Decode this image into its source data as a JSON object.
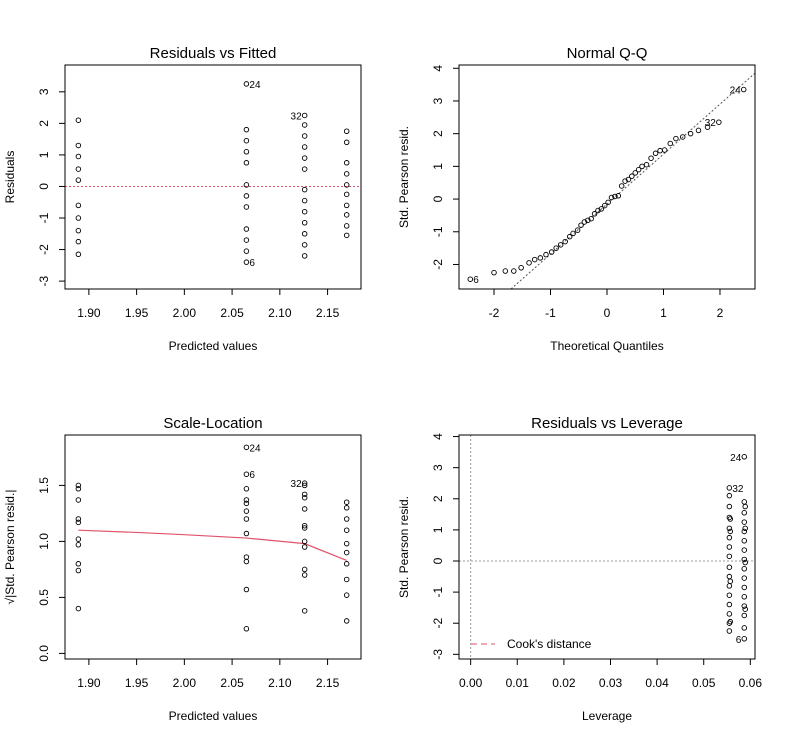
{
  "chart_data": [
    {
      "type": "scatter",
      "title": "Residuals vs Fitted",
      "xlabel": "Predicted values",
      "ylabel": "Residuals",
      "xlim": [
        1.875,
        2.185
      ],
      "ylim": [
        -3.25,
        3.85
      ],
      "xticks": [
        1.9,
        1.95,
        2.0,
        2.05,
        2.1,
        2.15
      ],
      "xtick_labels": [
        "1.90",
        "1.95",
        "2.00",
        "2.05",
        "2.10",
        "2.15"
      ],
      "yticks": [
        -3,
        -2,
        -1,
        0,
        1,
        2,
        3
      ],
      "ytick_labels": [
        "-3",
        "-2",
        "-1",
        "0",
        "1",
        "2",
        "3"
      ],
      "reference_line": {
        "y": 0,
        "color": "#DF536B",
        "style": "dotted"
      },
      "points": [
        {
          "x": 1.889,
          "y": 2.1
        },
        {
          "x": 1.889,
          "y": 1.3
        },
        {
          "x": 1.889,
          "y": 0.95
        },
        {
          "x": 1.889,
          "y": 0.55
        },
        {
          "x": 1.889,
          "y": 0.2
        },
        {
          "x": 1.889,
          "y": -0.6
        },
        {
          "x": 1.889,
          "y": -1.0
        },
        {
          "x": 1.889,
          "y": -1.4
        },
        {
          "x": 1.889,
          "y": -1.75
        },
        {
          "x": 1.889,
          "y": -2.15
        },
        {
          "x": 2.065,
          "y": 3.25
        },
        {
          "x": 2.065,
          "y": 1.8
        },
        {
          "x": 2.065,
          "y": 1.45
        },
        {
          "x": 2.065,
          "y": 1.1
        },
        {
          "x": 2.065,
          "y": 0.75
        },
        {
          "x": 2.065,
          "y": 0.05
        },
        {
          "x": 2.065,
          "y": -0.3
        },
        {
          "x": 2.065,
          "y": -0.65
        },
        {
          "x": 2.065,
          "y": -1.35
        },
        {
          "x": 2.065,
          "y": -1.7
        },
        {
          "x": 2.065,
          "y": -2.05
        },
        {
          "x": 2.065,
          "y": -2.4
        },
        {
          "x": 2.126,
          "y": 2.25
        },
        {
          "x": 2.126,
          "y": 1.95
        },
        {
          "x": 2.126,
          "y": 1.6
        },
        {
          "x": 2.126,
          "y": 1.25
        },
        {
          "x": 2.126,
          "y": 0.9
        },
        {
          "x": 2.126,
          "y": 0.55
        },
        {
          "x": 2.126,
          "y": -0.1
        },
        {
          "x": 2.126,
          "y": -0.45
        },
        {
          "x": 2.126,
          "y": -0.8
        },
        {
          "x": 2.126,
          "y": -1.15
        },
        {
          "x": 2.126,
          "y": -1.5
        },
        {
          "x": 2.126,
          "y": -1.85
        },
        {
          "x": 2.126,
          "y": -2.2
        },
        {
          "x": 2.17,
          "y": 1.75
        },
        {
          "x": 2.17,
          "y": 1.4
        },
        {
          "x": 2.17,
          "y": 0.75
        },
        {
          "x": 2.17,
          "y": 0.4
        },
        {
          "x": 2.17,
          "y": 0.05
        },
        {
          "x": 2.17,
          "y": -0.25
        },
        {
          "x": 2.17,
          "y": -0.6
        },
        {
          "x": 2.17,
          "y": -0.9
        },
        {
          "x": 2.17,
          "y": -1.25
        },
        {
          "x": 2.17,
          "y": -1.55
        }
      ],
      "annotations": [
        {
          "text": "24",
          "x": 2.065,
          "y": 3.25,
          "pos": "right"
        },
        {
          "text": "6",
          "x": 2.065,
          "y": -2.4,
          "pos": "right"
        },
        {
          "text": "32",
          "x": 2.126,
          "y": 2.25,
          "pos": "left"
        }
      ]
    },
    {
      "type": "scatter",
      "title": "Normal Q-Q",
      "xlabel": "Theoretical Quantiles",
      "ylabel": "Std. Pearson resid.",
      "xlim": [
        -2.62,
        2.62
      ],
      "ylim": [
        -2.75,
        4.1
      ],
      "xticks": [
        -2,
        -1,
        0,
        1,
        2
      ],
      "xtick_labels": [
        "-2",
        "-1",
        "0",
        "1",
        "2"
      ],
      "yticks": [
        -2,
        -1,
        0,
        1,
        2,
        3,
        4
      ],
      "ytick_labels": [
        "-2",
        "-1",
        "0",
        "1",
        "2",
        "3",
        "4"
      ],
      "reference_line": {
        "x": [
          -1.7,
          2.62
        ],
        "y": [
          -2.75,
          3.85
        ],
        "color": "#555555",
        "style": "dotted"
      },
      "points": [
        {
          "x": -2.42,
          "y": -2.45
        },
        {
          "x": -2.0,
          "y": -2.25
        },
        {
          "x": -1.8,
          "y": -2.2
        },
        {
          "x": -1.65,
          "y": -2.2
        },
        {
          "x": -1.52,
          "y": -2.1
        },
        {
          "x": -1.38,
          "y": -1.95
        },
        {
          "x": -1.28,
          "y": -1.85
        },
        {
          "x": -1.18,
          "y": -1.8
        },
        {
          "x": -1.08,
          "y": -1.7
        },
        {
          "x": -0.98,
          "y": -1.62
        },
        {
          "x": -0.9,
          "y": -1.5
        },
        {
          "x": -0.82,
          "y": -1.4
        },
        {
          "x": -0.74,
          "y": -1.3
        },
        {
          "x": -0.66,
          "y": -1.15
        },
        {
          "x": -0.6,
          "y": -1.05
        },
        {
          "x": -0.52,
          "y": -0.95
        },
        {
          "x": -0.46,
          "y": -0.8
        },
        {
          "x": -0.4,
          "y": -0.7
        },
        {
          "x": -0.34,
          "y": -0.65
        },
        {
          "x": -0.28,
          "y": -0.6
        },
        {
          "x": -0.22,
          "y": -0.45
        },
        {
          "x": -0.16,
          "y": -0.35
        },
        {
          "x": -0.1,
          "y": -0.3
        },
        {
          "x": -0.04,
          "y": -0.2
        },
        {
          "x": 0.02,
          "y": -0.1
        },
        {
          "x": 0.08,
          "y": 0.05
        },
        {
          "x": 0.14,
          "y": 0.08
        },
        {
          "x": 0.2,
          "y": 0.1
        },
        {
          "x": 0.26,
          "y": 0.4
        },
        {
          "x": 0.32,
          "y": 0.55
        },
        {
          "x": 0.38,
          "y": 0.6
        },
        {
          "x": 0.44,
          "y": 0.7
        },
        {
          "x": 0.5,
          "y": 0.8
        },
        {
          "x": 0.56,
          "y": 0.9
        },
        {
          "x": 0.62,
          "y": 1.0
        },
        {
          "x": 0.7,
          "y": 1.05
        },
        {
          "x": 0.78,
          "y": 1.25
        },
        {
          "x": 0.86,
          "y": 1.4
        },
        {
          "x": 0.94,
          "y": 1.48
        },
        {
          "x": 1.02,
          "y": 1.5
        },
        {
          "x": 1.12,
          "y": 1.7
        },
        {
          "x": 1.22,
          "y": 1.85
        },
        {
          "x": 1.34,
          "y": 1.9
        },
        {
          "x": 1.48,
          "y": 2.0
        },
        {
          "x": 1.62,
          "y": 2.1
        },
        {
          "x": 1.78,
          "y": 2.2
        },
        {
          "x": 1.98,
          "y": 2.35
        },
        {
          "x": 2.42,
          "y": 3.35
        }
      ],
      "annotations": [
        {
          "text": "24",
          "x": 2.42,
          "y": 3.35,
          "pos": "left"
        },
        {
          "text": "32",
          "x": 1.98,
          "y": 2.35,
          "pos": "left"
        },
        {
          "text": "6",
          "x": -2.42,
          "y": -2.45,
          "pos": "right"
        }
      ]
    },
    {
      "type": "scatter",
      "title": "Scale-Location",
      "xlabel": "Predicted values",
      "ylabel": "√|Std. Pearson resid.|",
      "xlim": [
        1.875,
        2.185
      ],
      "ylim": [
        -0.05,
        1.95
      ],
      "xticks": [
        1.9,
        1.95,
        2.0,
        2.05,
        2.1,
        2.15
      ],
      "xtick_labels": [
        "1.90",
        "1.95",
        "2.00",
        "2.05",
        "2.10",
        "2.15"
      ],
      "yticks": [
        0.0,
        0.5,
        1.0,
        1.5
      ],
      "ytick_labels": [
        "0.0",
        "0.5",
        "1.0",
        "1.5"
      ],
      "smooth_line": {
        "x": [
          1.889,
          1.95,
          2.0,
          2.065,
          2.126,
          2.17
        ],
        "y": [
          1.1,
          1.08,
          1.06,
          1.03,
          0.98,
          0.83
        ],
        "color": "#DF536B"
      },
      "points": [
        {
          "x": 1.889,
          "y": 1.5
        },
        {
          "x": 1.889,
          "y": 1.47
        },
        {
          "x": 1.889,
          "y": 1.37
        },
        {
          "x": 1.889,
          "y": 1.2
        },
        {
          "x": 1.889,
          "y": 1.17
        },
        {
          "x": 1.889,
          "y": 1.02
        },
        {
          "x": 1.889,
          "y": 0.97
        },
        {
          "x": 1.889,
          "y": 0.8
        },
        {
          "x": 1.889,
          "y": 0.74
        },
        {
          "x": 1.889,
          "y": 0.4
        },
        {
          "x": 2.065,
          "y": 1.84
        },
        {
          "x": 2.065,
          "y": 1.6
        },
        {
          "x": 2.065,
          "y": 1.47
        },
        {
          "x": 2.065,
          "y": 1.37
        },
        {
          "x": 2.065,
          "y": 1.34
        },
        {
          "x": 2.065,
          "y": 1.27
        },
        {
          "x": 2.065,
          "y": 1.2
        },
        {
          "x": 2.065,
          "y": 1.07
        },
        {
          "x": 2.065,
          "y": 0.86
        },
        {
          "x": 2.065,
          "y": 0.82
        },
        {
          "x": 2.065,
          "y": 0.57
        },
        {
          "x": 2.065,
          "y": 0.22
        },
        {
          "x": 2.126,
          "y": 1.52
        },
        {
          "x": 2.126,
          "y": 1.5
        },
        {
          "x": 2.126,
          "y": 1.42
        },
        {
          "x": 2.126,
          "y": 1.39
        },
        {
          "x": 2.126,
          "y": 1.29
        },
        {
          "x": 2.126,
          "y": 1.14
        },
        {
          "x": 2.126,
          "y": 1.12
        },
        {
          "x": 2.126,
          "y": 1.0
        },
        {
          "x": 2.126,
          "y": 0.95
        },
        {
          "x": 2.126,
          "y": 0.75
        },
        {
          "x": 2.126,
          "y": 0.7
        },
        {
          "x": 2.126,
          "y": 0.38
        },
        {
          "x": 2.17,
          "y": 1.35
        },
        {
          "x": 2.17,
          "y": 1.3
        },
        {
          "x": 2.17,
          "y": 1.2
        },
        {
          "x": 2.17,
          "y": 1.1
        },
        {
          "x": 2.17,
          "y": 0.98
        },
        {
          "x": 2.17,
          "y": 0.9
        },
        {
          "x": 2.17,
          "y": 0.8
        },
        {
          "x": 2.17,
          "y": 0.66
        },
        {
          "x": 2.17,
          "y": 0.52
        },
        {
          "x": 2.17,
          "y": 0.29
        }
      ],
      "annotations": [
        {
          "text": "24",
          "x": 2.065,
          "y": 1.84,
          "pos": "right"
        },
        {
          "text": "6",
          "x": 2.065,
          "y": 1.6,
          "pos": "right"
        },
        {
          "text": "32",
          "x": 2.126,
          "y": 1.52,
          "pos": "left"
        }
      ]
    },
    {
      "type": "scatter",
      "title": "Residuals vs Leverage",
      "xlabel": "Leverage",
      "ylabel": "Std. Pearson resid.",
      "xlim": [
        -0.0025,
        0.061
      ],
      "ylim": [
        -3.15,
        4.05
      ],
      "xticks": [
        0.0,
        0.01,
        0.02,
        0.03,
        0.04,
        0.05,
        0.06
      ],
      "xtick_labels": [
        "0.00",
        "0.01",
        "0.02",
        "0.03",
        "0.04",
        "0.05",
        "0.06"
      ],
      "yticks": [
        -3,
        -2,
        -1,
        0,
        1,
        2,
        3,
        4
      ],
      "ytick_labels": [
        "-3",
        "-2",
        "-1",
        "0",
        "1",
        "2",
        "3",
        "4"
      ],
      "reference_lines": [
        {
          "y": 0,
          "color": "#999999",
          "style": "dotted"
        },
        {
          "x": 0,
          "color": "#999999",
          "style": "dotted"
        }
      ],
      "legend": {
        "entries": [
          "Cook's distance"
        ],
        "position": "bottom-left",
        "color": "#DF536B",
        "style": "dashed"
      },
      "points": [
        {
          "x": 0.0555,
          "y": 2.35
        },
        {
          "x": 0.0555,
          "y": 2.1
        },
        {
          "x": 0.0555,
          "y": 1.75
        },
        {
          "x": 0.0555,
          "y": 1.4
        },
        {
          "x": 0.0555,
          "y": 1.05
        },
        {
          "x": 0.0555,
          "y": 0.75
        },
        {
          "x": 0.0555,
          "y": 0.45
        },
        {
          "x": 0.0555,
          "y": 0.15
        },
        {
          "x": 0.0555,
          "y": -0.2
        },
        {
          "x": 0.0555,
          "y": -0.5
        },
        {
          "x": 0.0555,
          "y": -0.8
        },
        {
          "x": 0.0555,
          "y": -1.1
        },
        {
          "x": 0.0555,
          "y": -1.4
        },
        {
          "x": 0.0555,
          "y": -1.7
        },
        {
          "x": 0.0555,
          "y": -2.0
        },
        {
          "x": 0.0555,
          "y": -2.25
        },
        {
          "x": 0.0557,
          "y": 1.35
        },
        {
          "x": 0.0557,
          "y": 0.95
        },
        {
          "x": 0.0557,
          "y": -0.65
        },
        {
          "x": 0.0557,
          "y": -1.95
        },
        {
          "x": 0.0587,
          "y": 3.35
        },
        {
          "x": 0.0587,
          "y": 1.9
        },
        {
          "x": 0.0587,
          "y": 1.55
        },
        {
          "x": 0.0587,
          "y": 1.25
        },
        {
          "x": 0.0587,
          "y": 0.95
        },
        {
          "x": 0.0587,
          "y": 0.65
        },
        {
          "x": 0.0587,
          "y": 0.35
        },
        {
          "x": 0.0587,
          "y": 0.05
        },
        {
          "x": 0.0587,
          "y": -0.25
        },
        {
          "x": 0.0587,
          "y": -0.55
        },
        {
          "x": 0.0587,
          "y": -0.85
        },
        {
          "x": 0.0587,
          "y": -1.15
        },
        {
          "x": 0.0587,
          "y": -1.45
        },
        {
          "x": 0.0587,
          "y": -1.75
        },
        {
          "x": 0.0587,
          "y": -2.15
        },
        {
          "x": 0.0587,
          "y": -2.5
        },
        {
          "x": 0.0589,
          "y": 1.75
        },
        {
          "x": 0.0589,
          "y": 1.05
        },
        {
          "x": 0.0589,
          "y": -0.05
        },
        {
          "x": 0.0589,
          "y": -1.55
        }
      ],
      "annotations": [
        {
          "text": "24",
          "x": 0.0587,
          "y": 3.35,
          "pos": "left"
        },
        {
          "text": "32",
          "x": 0.0555,
          "y": 2.35,
          "pos": "right"
        },
        {
          "text": "6",
          "x": 0.0587,
          "y": -2.5,
          "pos": "left"
        }
      ]
    }
  ]
}
